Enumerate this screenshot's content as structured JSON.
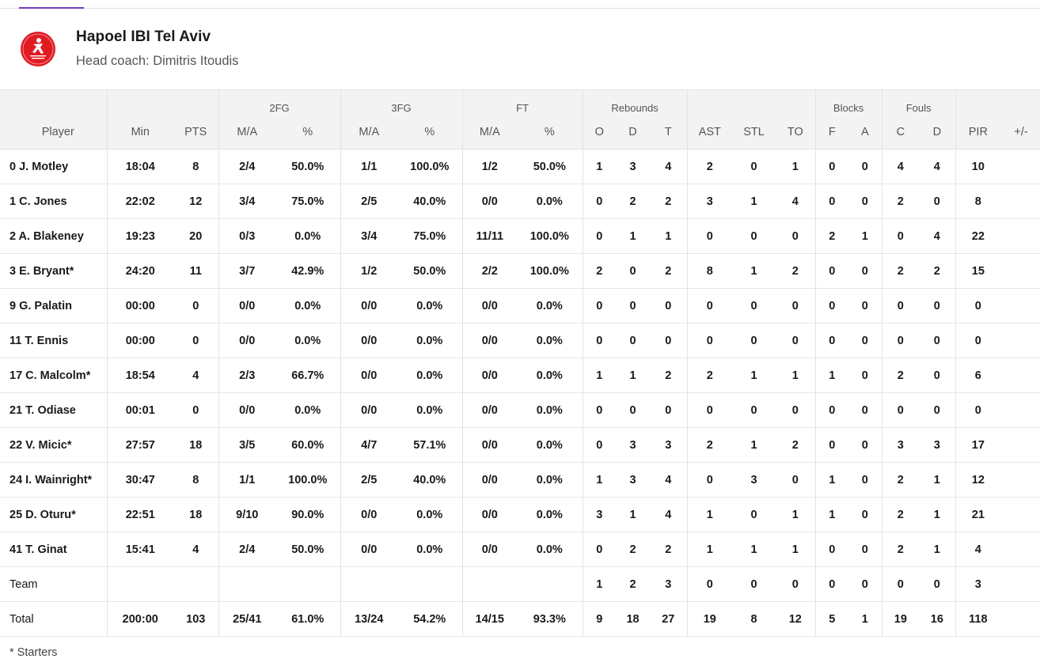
{
  "team": {
    "name": "Hapoel IBI Tel Aviv",
    "coach_label": "Head coach: Dimitris Itoudis",
    "logo_icon": "hapoel-tel-aviv-crest-icon",
    "logo_color": "#e11b22"
  },
  "groups": {
    "fg2": "2FG",
    "fg3": "3FG",
    "ft": "FT",
    "rebounds": "Rebounds",
    "blocks": "Blocks",
    "fouls": "Fouls"
  },
  "columns": [
    "Player",
    "Min",
    "PTS",
    "M/A",
    "%",
    "M/A",
    "%",
    "M/A",
    "%",
    "O",
    "D",
    "T",
    "AST",
    "STL",
    "TO",
    "F",
    "A",
    "C",
    "D",
    "PIR",
    "+/-"
  ],
  "rows": [
    {
      "player": "0 J. Motley",
      "min": "18:04",
      "pts": "8",
      "fg2": "2/4",
      "fg2p": "50.0%",
      "fg3": "1/1",
      "fg3p": "100.0%",
      "ft": "1/2",
      "ftp": "50.0%",
      "o": "1",
      "d": "3",
      "t": "4",
      "ast": "2",
      "stl": "0",
      "to": "1",
      "bf": "0",
      "ba": "0",
      "fc": "4",
      "fd": "4",
      "pir": "10",
      "pm": ""
    },
    {
      "player": "1 C. Jones",
      "min": "22:02",
      "pts": "12",
      "fg2": "3/4",
      "fg2p": "75.0%",
      "fg3": "2/5",
      "fg3p": "40.0%",
      "ft": "0/0",
      "ftp": "0.0%",
      "o": "0",
      "d": "2",
      "t": "2",
      "ast": "3",
      "stl": "1",
      "to": "4",
      "bf": "0",
      "ba": "0",
      "fc": "2",
      "fd": "0",
      "pir": "8",
      "pm": ""
    },
    {
      "player": "2 A. Blakeney",
      "min": "19:23",
      "pts": "20",
      "fg2": "0/3",
      "fg2p": "0.0%",
      "fg3": "3/4",
      "fg3p": "75.0%",
      "ft": "11/11",
      "ftp": "100.0%",
      "o": "0",
      "d": "1",
      "t": "1",
      "ast": "0",
      "stl": "0",
      "to": "0",
      "bf": "2",
      "ba": "1",
      "fc": "0",
      "fd": "4",
      "pir": "22",
      "pm": ""
    },
    {
      "player": "3 E. Bryant*",
      "min": "24:20",
      "pts": "11",
      "fg2": "3/7",
      "fg2p": "42.9%",
      "fg3": "1/2",
      "fg3p": "50.0%",
      "ft": "2/2",
      "ftp": "100.0%",
      "o": "2",
      "d": "0",
      "t": "2",
      "ast": "8",
      "stl": "1",
      "to": "2",
      "bf": "0",
      "ba": "0",
      "fc": "2",
      "fd": "2",
      "pir": "15",
      "pm": ""
    },
    {
      "player": "9 G. Palatin",
      "min": "00:00",
      "pts": "0",
      "fg2": "0/0",
      "fg2p": "0.0%",
      "fg3": "0/0",
      "fg3p": "0.0%",
      "ft": "0/0",
      "ftp": "0.0%",
      "o": "0",
      "d": "0",
      "t": "0",
      "ast": "0",
      "stl": "0",
      "to": "0",
      "bf": "0",
      "ba": "0",
      "fc": "0",
      "fd": "0",
      "pir": "0",
      "pm": ""
    },
    {
      "player": "11 T. Ennis",
      "min": "00:00",
      "pts": "0",
      "fg2": "0/0",
      "fg2p": "0.0%",
      "fg3": "0/0",
      "fg3p": "0.0%",
      "ft": "0/0",
      "ftp": "0.0%",
      "o": "0",
      "d": "0",
      "t": "0",
      "ast": "0",
      "stl": "0",
      "to": "0",
      "bf": "0",
      "ba": "0",
      "fc": "0",
      "fd": "0",
      "pir": "0",
      "pm": ""
    },
    {
      "player": "17 C. Malcolm*",
      "min": "18:54",
      "pts": "4",
      "fg2": "2/3",
      "fg2p": "66.7%",
      "fg3": "0/0",
      "fg3p": "0.0%",
      "ft": "0/0",
      "ftp": "0.0%",
      "o": "1",
      "d": "1",
      "t": "2",
      "ast": "2",
      "stl": "1",
      "to": "1",
      "bf": "1",
      "ba": "0",
      "fc": "2",
      "fd": "0",
      "pir": "6",
      "pm": ""
    },
    {
      "player": "21 T. Odiase",
      "min": "00:01",
      "pts": "0",
      "fg2": "0/0",
      "fg2p": "0.0%",
      "fg3": "0/0",
      "fg3p": "0.0%",
      "ft": "0/0",
      "ftp": "0.0%",
      "o": "0",
      "d": "0",
      "t": "0",
      "ast": "0",
      "stl": "0",
      "to": "0",
      "bf": "0",
      "ba": "0",
      "fc": "0",
      "fd": "0",
      "pir": "0",
      "pm": ""
    },
    {
      "player": "22 V. Micic*",
      "min": "27:57",
      "pts": "18",
      "fg2": "3/5",
      "fg2p": "60.0%",
      "fg3": "4/7",
      "fg3p": "57.1%",
      "ft": "0/0",
      "ftp": "0.0%",
      "o": "0",
      "d": "3",
      "t": "3",
      "ast": "2",
      "stl": "1",
      "to": "2",
      "bf": "0",
      "ba": "0",
      "fc": "3",
      "fd": "3",
      "pir": "17",
      "pm": ""
    },
    {
      "player": "24 I. Wainright*",
      "min": "30:47",
      "pts": "8",
      "fg2": "1/1",
      "fg2p": "100.0%",
      "fg3": "2/5",
      "fg3p": "40.0%",
      "ft": "0/0",
      "ftp": "0.0%",
      "o": "1",
      "d": "3",
      "t": "4",
      "ast": "0",
      "stl": "3",
      "to": "0",
      "bf": "1",
      "ba": "0",
      "fc": "2",
      "fd": "1",
      "pir": "12",
      "pm": ""
    },
    {
      "player": "25 D. Oturu*",
      "min": "22:51",
      "pts": "18",
      "fg2": "9/10",
      "fg2p": "90.0%",
      "fg3": "0/0",
      "fg3p": "0.0%",
      "ft": "0/0",
      "ftp": "0.0%",
      "o": "3",
      "d": "1",
      "t": "4",
      "ast": "1",
      "stl": "0",
      "to": "1",
      "bf": "1",
      "ba": "0",
      "fc": "2",
      "fd": "1",
      "pir": "21",
      "pm": ""
    },
    {
      "player": "41 T. Ginat",
      "min": "15:41",
      "pts": "4",
      "fg2": "2/4",
      "fg2p": "50.0%",
      "fg3": "0/0",
      "fg3p": "0.0%",
      "ft": "0/0",
      "ftp": "0.0%",
      "o": "0",
      "d": "2",
      "t": "2",
      "ast": "1",
      "stl": "1",
      "to": "1",
      "bf": "0",
      "ba": "0",
      "fc": "2",
      "fd": "1",
      "pir": "4",
      "pm": ""
    },
    {
      "player": "Team",
      "min": "",
      "pts": "",
      "fg2": "",
      "fg2p": "",
      "fg3": "",
      "fg3p": "",
      "ft": "",
      "ftp": "",
      "o": "1",
      "d": "2",
      "t": "3",
      "ast": "0",
      "stl": "0",
      "to": "0",
      "bf": "0",
      "ba": "0",
      "fc": "0",
      "fd": "0",
      "pir": "3",
      "pm": ""
    },
    {
      "player": "Total",
      "min": "200:00",
      "pts": "103",
      "fg2": "25/41",
      "fg2p": "61.0%",
      "fg3": "13/24",
      "fg3p": "54.2%",
      "ft": "14/15",
      "ftp": "93.3%",
      "o": "9",
      "d": "18",
      "t": "27",
      "ast": "19",
      "stl": "8",
      "to": "12",
      "bf": "5",
      "ba": "1",
      "fc": "19",
      "fd": "16",
      "pir": "118",
      "pm": ""
    }
  ],
  "footnote": "* Starters"
}
